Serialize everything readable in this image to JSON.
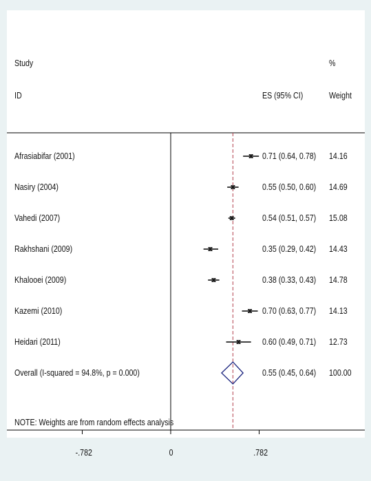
{
  "chart_data": {
    "type": "forest",
    "header": {
      "study": "Study",
      "id": "ID",
      "es": "ES (95% CI)",
      "pct": "%",
      "weight": "Weight"
    },
    "studies": [
      {
        "label": "Afrasiabifar (2001)",
        "es": 0.71,
        "lo": 0.64,
        "hi": 0.78,
        "es_text": "0.71 (0.64, 0.78)",
        "weight": "14.16"
      },
      {
        "label": "Nasiry (2004)",
        "es": 0.55,
        "lo": 0.5,
        "hi": 0.6,
        "es_text": "0.55 (0.50, 0.60)",
        "weight": "14.69"
      },
      {
        "label": "Vahedi (2007)",
        "es": 0.54,
        "lo": 0.51,
        "hi": 0.57,
        "es_text": "0.54 (0.51, 0.57)",
        "weight": "15.08"
      },
      {
        "label": "Rakhshani (2009)",
        "es": 0.35,
        "lo": 0.29,
        "hi": 0.42,
        "es_text": "0.35 (0.29, 0.42)",
        "weight": "14.43"
      },
      {
        "label": "Khalooei (2009)",
        "es": 0.38,
        "lo": 0.33,
        "hi": 0.43,
        "es_text": "0.38 (0.33, 0.43)",
        "weight": "14.78"
      },
      {
        "label": "Kazemi (2010)",
        "es": 0.7,
        "lo": 0.63,
        "hi": 0.77,
        "es_text": "0.70 (0.63, 0.77)",
        "weight": "14.13"
      },
      {
        "label": "Heidari (2011)",
        "es": 0.6,
        "lo": 0.49,
        "hi": 0.71,
        "es_text": "0.60 (0.49, 0.71)",
        "weight": "12.73"
      }
    ],
    "overall": {
      "label": "Overall  (I-squared = 94.8%, p = 0.000)",
      "es": 0.55,
      "lo": 0.45,
      "hi": 0.64,
      "es_text": "0.55 (0.45, 0.64)",
      "weight": "100.00"
    },
    "note": "NOTE: Weights are from random effects analysis",
    "x_ticks": [
      {
        "value": -0.782,
        "label": "-.782"
      },
      {
        "value": 0,
        "label": "0"
      },
      {
        "value": 0.782,
        "label": ".782"
      }
    ],
    "xlim": [
      -0.782,
      0.782
    ],
    "colors": {
      "null_line": "#000000",
      "overall_line": "#b03a48",
      "diamond": "#1a237e",
      "ci": "#000000"
    }
  }
}
